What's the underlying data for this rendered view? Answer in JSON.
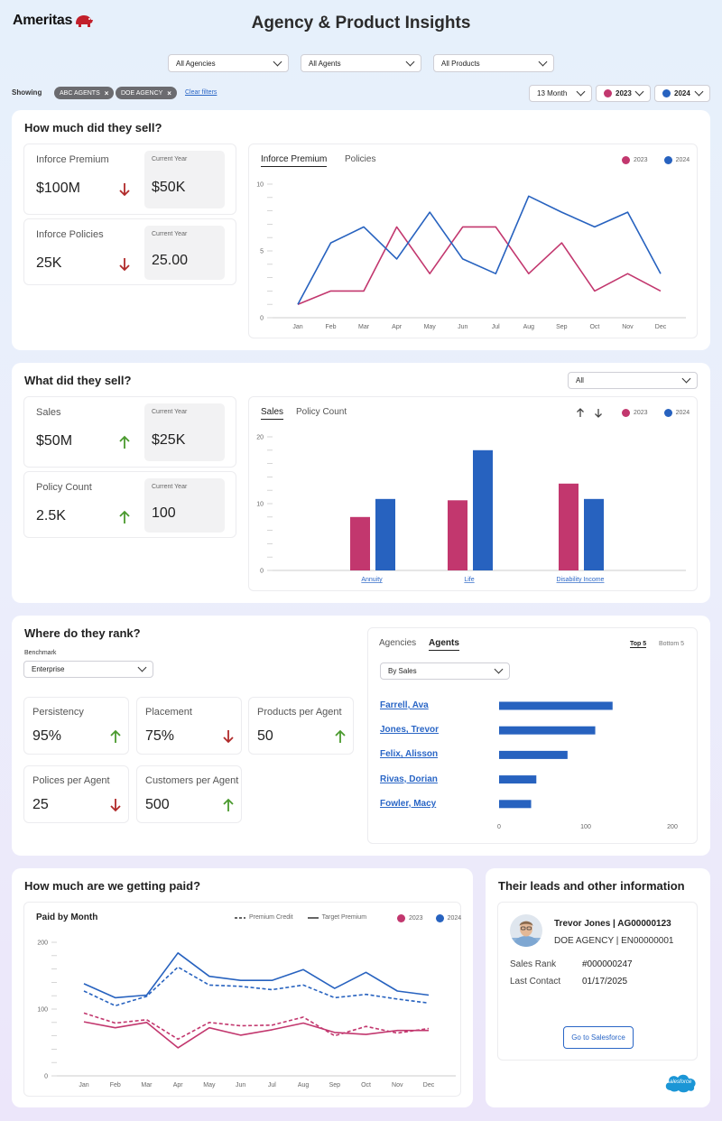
{
  "header": {
    "logo_text": "Ameritas",
    "title": "Agency & Product Insights"
  },
  "filters": {
    "agencies": "All Agencies",
    "agents": "All Agents",
    "products": "All Products"
  },
  "showing": {
    "label": "Showing",
    "chips": [
      "ABC AGENTS",
      "DOE AGENCY"
    ],
    "clear_label": "Clear filters",
    "period": "13 Month",
    "year_a": "2023",
    "year_b": "2024"
  },
  "colors": {
    "y2023": "#c2376e",
    "y2024": "#2762bf",
    "up": "#4a9a2e",
    "down": "#b02a2a"
  },
  "sell": {
    "title": "How much did they sell?",
    "kpis": [
      {
        "label": "Inforce Premium",
        "value": "$100M",
        "trend": "down",
        "cy_label": "Current Year",
        "cy_value": "$50K"
      },
      {
        "label": "Inforce Policies",
        "value": "25K",
        "trend": "down",
        "cy_label": "Current Year",
        "cy_value": "25.00"
      }
    ],
    "tabs": [
      "Inforce Premium",
      "Policies"
    ],
    "legend": [
      "2023",
      "2024"
    ]
  },
  "what": {
    "title": "What did they sell?",
    "filter": "All",
    "kpis": [
      {
        "label": "Sales",
        "value": "$50M",
        "trend": "up",
        "cy_label": "Current Year",
        "cy_value": "$25K"
      },
      {
        "label": "Policy Count",
        "value": "2.5K",
        "trend": "up",
        "cy_label": "Current Year",
        "cy_value": "100"
      }
    ],
    "tabs": [
      "Sales",
      "Policy Count"
    ],
    "legend": [
      "2023",
      "2024"
    ]
  },
  "rank": {
    "title": "Where do they rank?",
    "benchmark_label": "Benchmark",
    "benchmark_value": "Enterprise",
    "metrics": [
      {
        "label": "Persistency",
        "value": "95%",
        "trend": "up"
      },
      {
        "label": "Placement",
        "value": "75%",
        "trend": "down"
      },
      {
        "label": "Products per Agent",
        "value": "50",
        "trend": "up"
      },
      {
        "label": "Polices per Agent",
        "value": "25",
        "trend": "down"
      },
      {
        "label": "Customers per Agent",
        "value": "500",
        "trend": "up"
      }
    ],
    "tabs": [
      "Agencies",
      "Agents"
    ],
    "top_label": "Top 5",
    "bottom_label": "Bottom 5",
    "sort_select": "By Sales"
  },
  "paid": {
    "title": "How much are we getting paid?",
    "chart_title": "Paid by Month",
    "legend_dashed": "Premium Credit",
    "legend_solid": "Target Premium",
    "legend": [
      "2023",
      "2024"
    ]
  },
  "leads": {
    "title": "Their leads and other information",
    "name_line": "Trevor Jones | AG00000123",
    "agency_line": "DOE AGENCY | EN00000001",
    "sales_rank_label": "Sales Rank",
    "sales_rank_value": "#000000247",
    "last_contact_label": "Last Contact",
    "last_contact_value": "01/17/2025",
    "button": "Go to Salesforce",
    "salesforce_logo": "salesforce"
  },
  "chart_data": [
    {
      "type": "line",
      "title": "Inforce Premium",
      "x": [
        "Jan",
        "Feb",
        "Mar",
        "Apr",
        "May",
        "Jun",
        "Jul",
        "Aug",
        "Sep",
        "Oct",
        "Nov",
        "Dec"
      ],
      "ylim": [
        0,
        10
      ],
      "yticks": [
        0,
        5,
        10
      ],
      "series": [
        {
          "name": "2023",
          "values": [
            1,
            2,
            2,
            6.8,
            3.3,
            6.8,
            6.8,
            3.3,
            5.6,
            2,
            3.3,
            2
          ]
        },
        {
          "name": "2024",
          "values": [
            1,
            5.6,
            6.8,
            4.4,
            7.9,
            4.4,
            3.3,
            9.1,
            7.9,
            6.8,
            7.9,
            3.3
          ]
        }
      ]
    },
    {
      "type": "bar",
      "title": "Sales",
      "categories": [
        "Annuity",
        "Life",
        "Disability Income"
      ],
      "ylim": [
        0,
        20
      ],
      "yticks": [
        0,
        10,
        20
      ],
      "series": [
        {
          "name": "2023",
          "values": [
            8,
            10.5,
            13
          ]
        },
        {
          "name": "2024",
          "values": [
            10.7,
            18,
            10.7
          ]
        }
      ]
    },
    {
      "type": "bar",
      "title": "Agents",
      "orientation": "horizontal",
      "categories": [
        "Farrell, Ava",
        "Jones, Trevor",
        "Felix, Alisson",
        "Rivas, Dorian",
        "Fowler, Macy"
      ],
      "ylim": [
        0,
        200
      ],
      "xticks": [
        0,
        100,
        200
      ],
      "values": [
        131,
        111,
        79,
        43,
        37
      ]
    },
    {
      "type": "line",
      "title": "Paid by Month",
      "x": [
        "Jan",
        "Feb",
        "Mar",
        "Apr",
        "May",
        "Jun",
        "Jul",
        "Aug",
        "Sep",
        "Oct",
        "Nov",
        "Dec"
      ],
      "ylim": [
        0,
        200
      ],
      "yticks": [
        0,
        100,
        200
      ],
      "series": [
        {
          "name": "2024 Target Premium",
          "style": "solid",
          "color": "2024",
          "values": [
            138,
            117,
            121,
            184,
            149,
            143,
            143,
            159,
            131,
            155,
            127,
            121
          ]
        },
        {
          "name": "2024 Premium Credit",
          "style": "dashed",
          "color": "2024",
          "values": [
            127,
            105,
            119,
            163,
            136,
            134,
            129,
            136,
            117,
            122,
            115,
            109
          ]
        },
        {
          "name": "2023 Target Premium",
          "style": "solid",
          "color": "2023",
          "values": [
            81,
            72,
            80,
            42,
            72,
            61,
            69,
            79,
            65,
            62,
            68,
            68
          ]
        },
        {
          "name": "2023 Premium Credit",
          "style": "dashed",
          "color": "2023",
          "values": [
            94,
            79,
            84,
            55,
            80,
            75,
            76,
            88,
            60,
            74,
            64,
            71
          ]
        }
      ]
    }
  ]
}
